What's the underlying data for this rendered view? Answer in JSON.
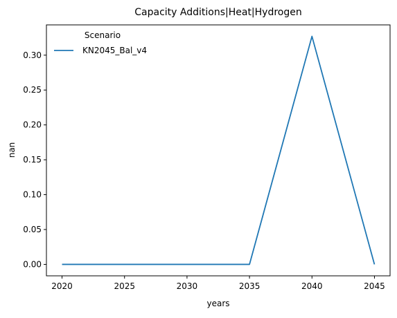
{
  "chart_data": {
    "type": "line",
    "title": "Capacity Additions|Heat|Hydrogen",
    "xlabel": "years",
    "ylabel": "nan",
    "x": [
      2020,
      2025,
      2030,
      2035,
      2040,
      2045
    ],
    "series": [
      {
        "name": "KN2045_Bal_v4",
        "values": [
          0.0,
          0.0,
          0.0,
          0.0,
          0.327,
          0.0
        ],
        "color": "#1f77b4"
      }
    ],
    "xlim": [
      2018.75,
      2046.25
    ],
    "ylim": [
      -0.0164,
      0.3434
    ],
    "x_ticks": [
      2020,
      2025,
      2030,
      2035,
      2040,
      2045
    ],
    "y_ticks": [
      0.0,
      0.05,
      0.1,
      0.15,
      0.2,
      0.25,
      0.3
    ],
    "y_tick_labels": [
      "0.00",
      "0.05",
      "0.10",
      "0.15",
      "0.20",
      "0.25",
      "0.30"
    ],
    "legend": {
      "title": "Scenario",
      "placement": "upper-left"
    },
    "grid": false
  }
}
